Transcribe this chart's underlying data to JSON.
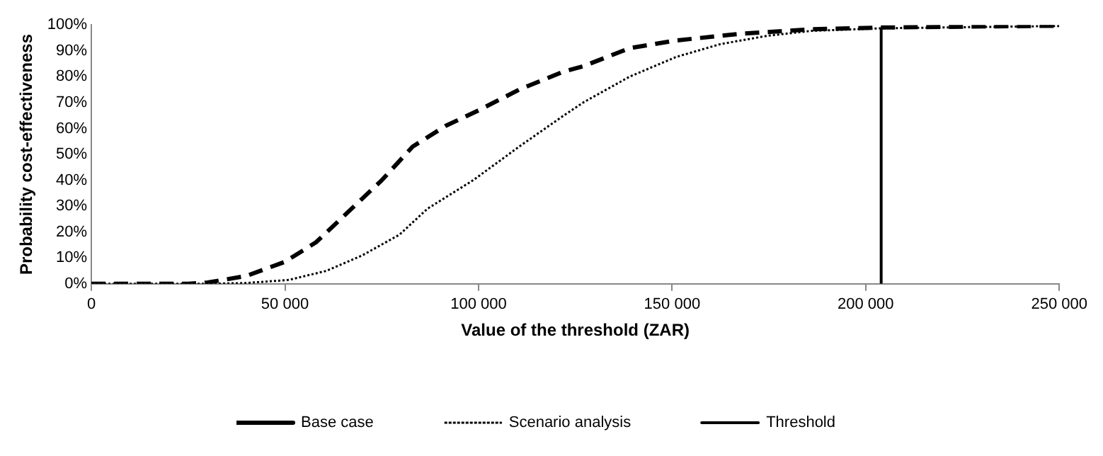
{
  "chart_data": {
    "type": "line",
    "xlabel": "Value of the threshold (ZAR)",
    "ylabel": "Probability cost-effectiveness",
    "xlim": [
      0,
      250000
    ],
    "xticks": [
      {
        "value": 0,
        "label": "0"
      },
      {
        "value": 50000,
        "label": "50 000"
      },
      {
        "value": 100000,
        "label": "100 000"
      },
      {
        "value": 150000,
        "label": "150 000"
      },
      {
        "value": 200000,
        "label": "200 000"
      },
      {
        "value": 250000,
        "label": "250 000"
      }
    ],
    "ylim": [
      0,
      100
    ],
    "yticks": [
      {
        "value": 0,
        "label": "0%"
      },
      {
        "value": 10,
        "label": "10%"
      },
      {
        "value": 20,
        "label": "20%"
      },
      {
        "value": 30,
        "label": "30%"
      },
      {
        "value": 40,
        "label": "40%"
      },
      {
        "value": 50,
        "label": "50%"
      },
      {
        "value": 60,
        "label": "60%"
      },
      {
        "value": 70,
        "label": "70%"
      },
      {
        "value": 80,
        "label": "80%"
      },
      {
        "value": 90,
        "label": "90%"
      },
      {
        "value": 100,
        "label": "100%"
      }
    ],
    "grid": false,
    "legend": "bottom",
    "marker": "none",
    "series": [
      {
        "name": "Base case",
        "color": "#000000",
        "line_style": "dashed",
        "x": [
          0,
          10000,
          20000,
          25000,
          30000,
          40000,
          50000,
          58000,
          66500,
          75000,
          83000,
          91500,
          100000,
          110500,
          122000,
          127000,
          139000,
          151000,
          168500,
          186000,
          204000,
          250000
        ],
        "values": [
          0,
          0,
          0,
          0,
          0.5,
          3,
          8.5,
          16,
          28,
          40,
          53,
          61,
          67,
          75,
          82,
          84,
          91,
          94,
          96.7,
          98.3,
          99,
          99.7
        ]
      },
      {
        "name": "Scenario analysis",
        "color": "#000000",
        "line_style": "dotted",
        "x": [
          0,
          10000,
          20000,
          30000,
          40000,
          51000,
          60700,
          70000,
          79600,
          86800,
          98600,
          110500,
          122000,
          127000,
          139000,
          151000,
          162500,
          174600,
          186000,
          204000,
          250000
        ],
        "values": [
          0,
          0,
          0,
          0,
          0.3,
          1.5,
          5,
          11,
          19,
          29,
          40,
          53,
          65,
          70,
          80,
          87.6,
          92.6,
          95.8,
          97.7,
          98.7,
          99.6
        ]
      },
      {
        "name": "Threshold",
        "color": "#000000",
        "line_style": "solid",
        "x": [
          204000,
          204000
        ],
        "values": [
          0,
          99
        ]
      }
    ]
  }
}
